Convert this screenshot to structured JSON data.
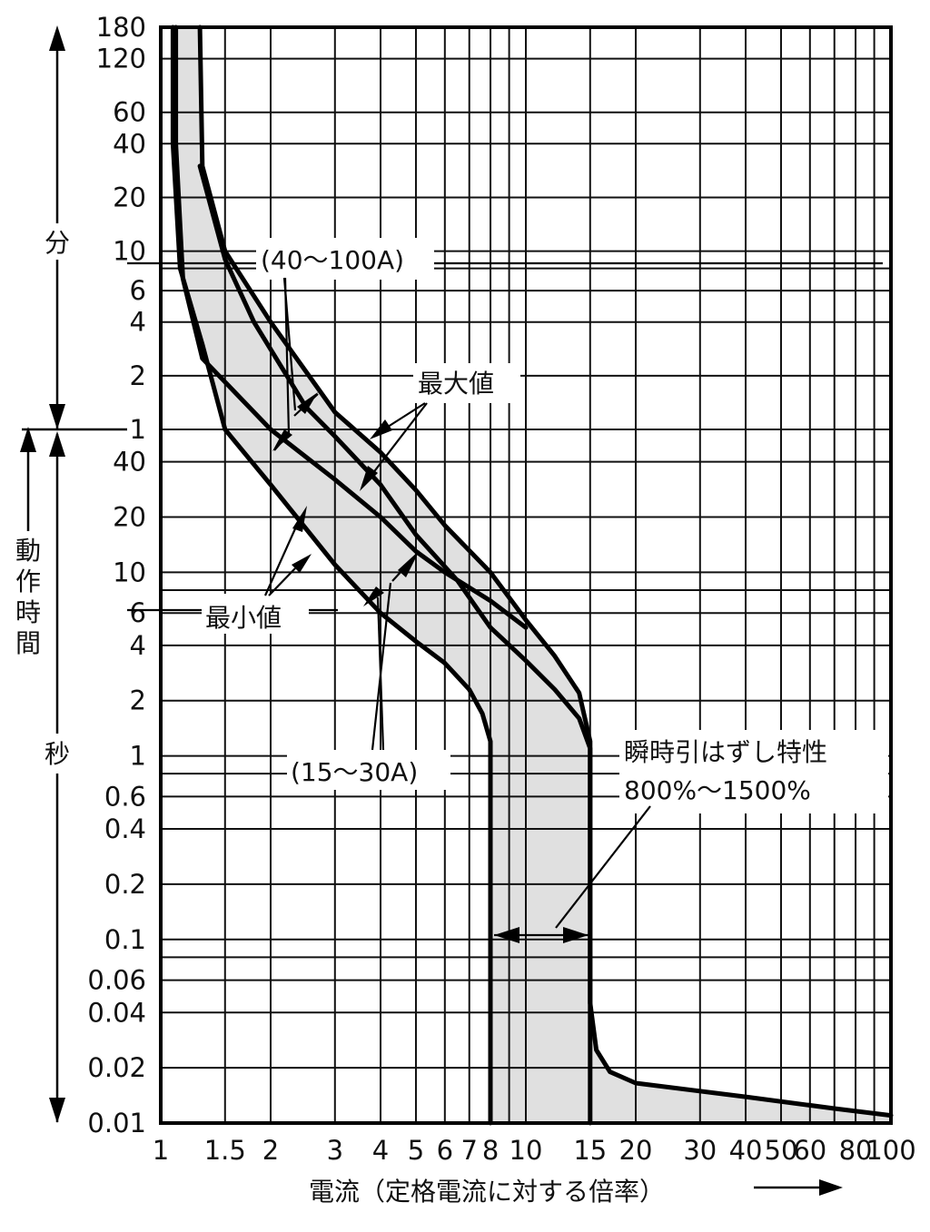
{
  "chart_data": {
    "type": "line",
    "xlabel": "電流（定格電流に対する倍率）",
    "x_scale": "log",
    "xlim": [
      1,
      100
    ],
    "x_ticks": [
      {
        "v": 1,
        "label": "1"
      },
      {
        "v": 1.5,
        "label": "1.5"
      },
      {
        "v": 2,
        "label": "2"
      },
      {
        "v": 3,
        "label": "3"
      },
      {
        "v": 4,
        "label": "4"
      },
      {
        "v": 5,
        "label": "5"
      },
      {
        "v": 6,
        "label": "6"
      },
      {
        "v": 7,
        "label": "7"
      },
      {
        "v": 8,
        "label": "8"
      },
      {
        "v": 10,
        "label": "10"
      },
      {
        "v": 15,
        "label": "15"
      },
      {
        "v": 20,
        "label": "20"
      },
      {
        "v": 30,
        "label": "30"
      },
      {
        "v": 40,
        "label": "40"
      },
      {
        "v": 50,
        "label": "50"
      },
      {
        "v": 60,
        "label": "60"
      },
      {
        "v": 80,
        "label": "80"
      },
      {
        "v": 100,
        "label": "100"
      }
    ],
    "x_grid": [
      1,
      1.5,
      2,
      3,
      4,
      5,
      6,
      7,
      8,
      9,
      10,
      15,
      20,
      30,
      40,
      50,
      60,
      70,
      80,
      90,
      100
    ],
    "y_scale": "log",
    "ylabel": "動作時間",
    "y_segments": [
      {
        "name": "分",
        "unit_seconds": 60,
        "range": [
          1,
          180
        ]
      },
      {
        "name": "秒",
        "unit_seconds": 1,
        "range": [
          0.01,
          60
        ]
      }
    ],
    "y_ticks": [
      {
        "seconds": 10800,
        "label": "180"
      },
      {
        "seconds": 7200,
        "label": "120"
      },
      {
        "seconds": 3600,
        "label": "60"
      },
      {
        "seconds": 2400,
        "label": "40"
      },
      {
        "seconds": 1200,
        "label": "20"
      },
      {
        "seconds": 600,
        "label": "10"
      },
      {
        "seconds": 360,
        "label": "6"
      },
      {
        "seconds": 240,
        "label": "4"
      },
      {
        "seconds": 120,
        "label": "2"
      },
      {
        "seconds": 60,
        "label": "1"
      },
      {
        "seconds": 40,
        "label": "40"
      },
      {
        "seconds": 20,
        "label": "20"
      },
      {
        "seconds": 10,
        "label": "10"
      },
      {
        "seconds": 6,
        "label": "6"
      },
      {
        "seconds": 4,
        "label": "4"
      },
      {
        "seconds": 2,
        "label": "2"
      },
      {
        "seconds": 1,
        "label": "1"
      },
      {
        "seconds": 0.6,
        "label": "0.6"
      },
      {
        "seconds": 0.4,
        "label": "0.4"
      },
      {
        "seconds": 0.2,
        "label": "0.2"
      },
      {
        "seconds": 0.1,
        "label": "0.1"
      },
      {
        "seconds": 0.06,
        "label": "0.06"
      },
      {
        "seconds": 0.04,
        "label": "0.04"
      },
      {
        "seconds": 0.02,
        "label": "0.02"
      },
      {
        "seconds": 0.01,
        "label": "0.01"
      }
    ],
    "y_grid_seconds": [
      10800,
      7200,
      3600,
      2400,
      1200,
      600,
      480,
      360,
      240,
      120,
      60,
      40,
      20,
      10,
      8,
      6,
      4,
      2,
      1,
      0.8,
      0.6,
      0.4,
      0.2,
      0.1,
      0.08,
      0.06,
      0.04,
      0.02,
      0.01
    ],
    "curves": [
      {
        "id": "min-outer",
        "points": [
          [
            1.08,
            10800
          ],
          [
            1.08,
            2400
          ],
          [
            1.13,
            480
          ],
          [
            1.3,
            180
          ],
          [
            1.5,
            60
          ],
          [
            2,
            30
          ],
          [
            3,
            11
          ],
          [
            4,
            6
          ],
          [
            5,
            4.2
          ],
          [
            6,
            3.2
          ],
          [
            7,
            2.3
          ],
          [
            7.6,
            1.7
          ],
          [
            8,
            1.2
          ],
          [
            8,
            0.01
          ]
        ]
      },
      {
        "id": "min-inner",
        "points": [
          [
            1.28,
            1800
          ],
          [
            1.5,
            540
          ],
          [
            1.8,
            240
          ],
          [
            2.5,
            80
          ],
          [
            3,
            55
          ],
          [
            4,
            30
          ],
          [
            5,
            16
          ],
          [
            6.5,
            9
          ],
          [
            8,
            5
          ],
          [
            10,
            3.3
          ],
          [
            12,
            2.3
          ],
          [
            14,
            1.6
          ],
          [
            15,
            1.1
          ],
          [
            15,
            0.01
          ]
        ]
      },
      {
        "id": "max-inner",
        "points": [
          [
            1.1,
            10800
          ],
          [
            1.1,
            2400
          ],
          [
            1.15,
            420
          ],
          [
            1.3,
            150
          ],
          [
            2,
            60
          ],
          [
            3,
            32
          ],
          [
            4,
            20
          ],
          [
            5,
            13
          ],
          [
            6,
            10
          ],
          [
            8,
            7
          ],
          [
            10,
            5
          ]
        ]
      },
      {
        "id": "max-outer",
        "points": [
          [
            1.28,
            10800
          ],
          [
            1.3,
            1800
          ],
          [
            1.5,
            600
          ],
          [
            2,
            240
          ],
          [
            3,
            75
          ],
          [
            4,
            45
          ],
          [
            5,
            28
          ],
          [
            6,
            18
          ],
          [
            8,
            10
          ],
          [
            10,
            5.5
          ],
          [
            12,
            3.5
          ],
          [
            14,
            2.2
          ],
          [
            15,
            1.2
          ],
          [
            15,
            0.045
          ],
          [
            15.6,
            0.025
          ],
          [
            17,
            0.019
          ],
          [
            20,
            0.0165
          ],
          [
            40,
            0.0139
          ],
          [
            70,
            0.012
          ],
          [
            100,
            0.011
          ]
        ]
      }
    ],
    "band_fill": "#e0e0e0",
    "annotations": [
      {
        "text": "(40～100A)"
      },
      {
        "text": "最大値"
      },
      {
        "text": "最小値"
      },
      {
        "text": "(15～30A)"
      },
      {
        "text": "瞬時引はずし特性"
      },
      {
        "text": "800%～1500%"
      }
    ]
  }
}
